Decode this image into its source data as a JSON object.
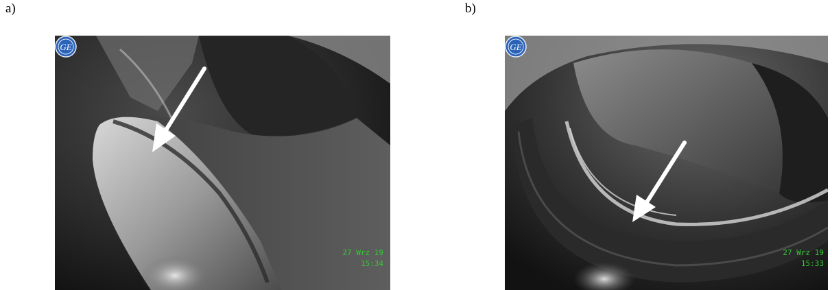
{
  "panels": [
    {
      "label": "a)",
      "overlay": {
        "date": "27 Wrz 19",
        "time": "15:34"
      }
    },
    {
      "label": "b)",
      "overlay": {
        "date": "27 Wrz 19",
        "time": "15:33"
      }
    }
  ],
  "logo": {
    "icon": "ge-logo-icon",
    "text": "GE"
  },
  "colors": {
    "overlay_text": "#35c935",
    "arrow": "#ffffff",
    "logo_blue": "#2a63b8"
  }
}
